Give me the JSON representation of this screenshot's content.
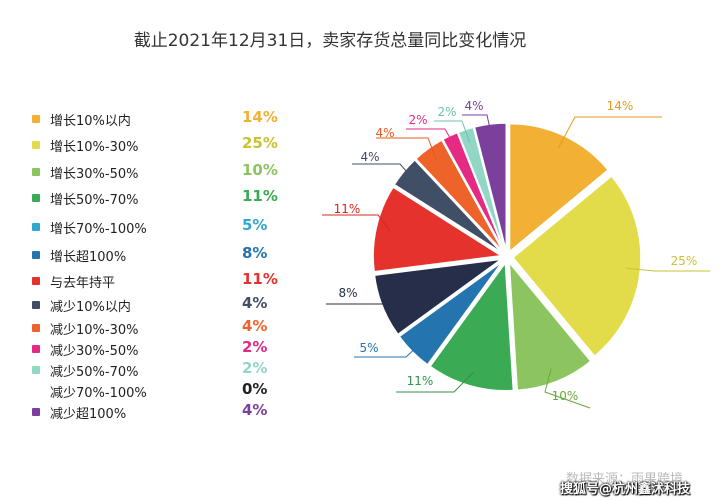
{
  "title": "截止2021年12月31日，卖家存货总量同比变化情况",
  "source": "数据来源：雨果跨境",
  "watermark": "搜狐号@杭州鑫沭科技",
  "chart_data": {
    "type": "pie",
    "title": "截止2021年12月31日，卖家存货总量同比变化情况",
    "legend_position": "left",
    "slices": [
      {
        "label": "增长10%以内",
        "value": 14,
        "pct_label": "14%",
        "color": "#f2b035"
      },
      {
        "label": "增长10%-30%",
        "value": 25,
        "pct_label": "25%",
        "color": "#e2dc4b"
      },
      {
        "label": "增长30%-50%",
        "value": 10,
        "pct_label": "10%",
        "color": "#8cc560"
      },
      {
        "label": "增长50%-70%",
        "value": 11,
        "pct_label": "11%",
        "color": "#3aaa55"
      },
      {
        "label": "增长70%-100%",
        "value": 5,
        "pct_label": "5%",
        "color": "#30a7cf"
      },
      {
        "label": "增长超100%",
        "value": 8,
        "pct_label": "8%",
        "color": "#2474b0"
      },
      {
        "label": "与去年持平",
        "value": 11,
        "pct_label": "11%",
        "color": "#e5322d"
      },
      {
        "label": "减少10%以内",
        "value": 4,
        "pct_label": "4%",
        "color": "#414f66"
      },
      {
        "label": "减少10%-30%",
        "value": 4,
        "pct_label": "4%",
        "color": "#ee6329"
      },
      {
        "label": "减少30%-50%",
        "value": 2,
        "pct_label": "2%",
        "color": "#e52a84"
      },
      {
        "label": "减少50%-70%",
        "value": 2,
        "pct_label": "2%",
        "color": "#92d6c6"
      },
      {
        "label": "减少70%-100%",
        "value": 0,
        "pct_label": "0%",
        "color": "#222222"
      },
      {
        "label": "减少超100%",
        "value": 4,
        "pct_label": "4%",
        "color": "#7b3f9c"
      }
    ],
    "pie_order": [
      {
        "label": "增长10%以内",
        "value": 14,
        "pct_label": "14%",
        "color": "#f2b035",
        "label_color": "#e59a1f"
      },
      {
        "label": "增长10%-30%",
        "value": 25,
        "pct_label": "25%",
        "color": "#e2dc4b",
        "label_color": "#c9c235"
      },
      {
        "label": "增长30%-50%",
        "value": 10,
        "pct_label": "10%",
        "color": "#8cc560",
        "label_color": "#6aa83f"
      },
      {
        "label": "增长50%-70%",
        "value": 11,
        "pct_label": "11%",
        "color": "#3aaa55",
        "label_color": "#2f9448"
      },
      {
        "label": "增长70%-100%",
        "value": 5,
        "pct_label": "5%",
        "color": "#2474b0",
        "label_color": "#2474b0"
      },
      {
        "label": "增长超100%",
        "value": 8,
        "pct_label": "8%",
        "color": "#272e4a",
        "label_color": "#272e4a"
      },
      {
        "label": "与去年持平",
        "value": 11,
        "pct_label": "11%",
        "color": "#e5322d",
        "label_color": "#d8261f"
      },
      {
        "label": "减少10%以内",
        "value": 4,
        "pct_label": "4%",
        "color": "#414f66",
        "label_color": "#414f66"
      },
      {
        "label": "减少10%-30%",
        "value": 4,
        "pct_label": "4%",
        "color": "#ee6329",
        "label_color": "#e55a1e"
      },
      {
        "label": "减少30%-50%",
        "value": 2,
        "pct_label": "2%",
        "color": "#e52a84",
        "label_color": "#e52a84"
      },
      {
        "label": "减少50%-70%",
        "value": 2,
        "pct_label": "2%",
        "color": "#92d6c6",
        "label_color": "#6cc2b0"
      },
      {
        "label": "减少超100%",
        "value": 4,
        "pct_label": "4%",
        "color": "#7b3f9c",
        "label_color": "#7b3f9c"
      }
    ]
  }
}
